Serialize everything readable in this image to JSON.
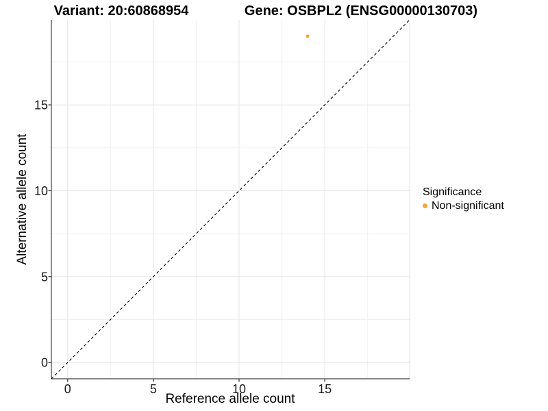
{
  "chart_data": {
    "type": "scatter",
    "title_left": "Variant: 20:60868954",
    "title_right": "Gene: OSBPL2 (ENSG00000130703)",
    "xlabel": "Reference allele count",
    "ylabel": "Alternative allele count",
    "xlim": [
      -0.95,
      19.95
    ],
    "ylim": [
      -0.95,
      19.95
    ],
    "x_ticks": [
      0,
      5,
      10,
      15
    ],
    "y_ticks": [
      0,
      5,
      10,
      15
    ],
    "x_gridlines_major": [
      0,
      5,
      10,
      15,
      20
    ],
    "y_gridlines_major": [
      0,
      5,
      10,
      15
    ],
    "x_gridlines_minor": [
      2.5,
      7.5,
      12.5,
      17.5
    ],
    "y_gridlines_minor": [
      2.5,
      7.5,
      12.5,
      17.5
    ],
    "grid": true,
    "identity_line": {
      "style": "dashed",
      "color": "#000000",
      "x1": -0.95,
      "y1": -0.95,
      "x2": 19.95,
      "y2": 19.95
    },
    "series": [
      {
        "name": "Non-significant",
        "color": "#F8A542",
        "points": [
          {
            "x": 14,
            "y": 19
          }
        ]
      }
    ],
    "legend": {
      "title": "Significance",
      "position": "right",
      "items": [
        {
          "label": "Non-significant",
          "color": "#F8A542"
        }
      ]
    },
    "style": {
      "background": "#FFFFFF",
      "grid_major": "#E4E4E4",
      "grid_minor": "#F0F0F0",
      "axis_line": "#404040",
      "tick_color": "#333333",
      "text_color": "#1A1A1A",
      "accent_orange": "#F8A542"
    }
  }
}
